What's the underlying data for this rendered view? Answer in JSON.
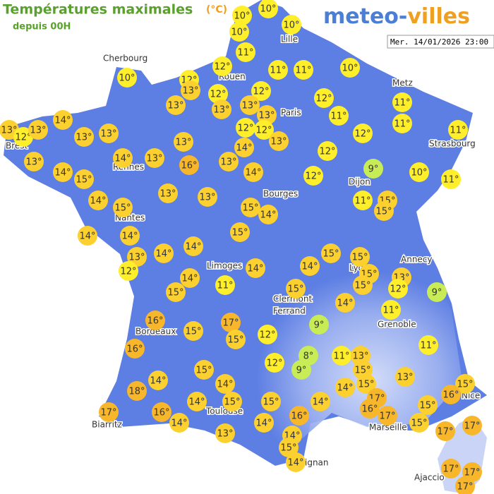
{
  "header": {
    "title": "Températures maximales",
    "unit": "(°C)",
    "subtitle": "depuis 00H",
    "logo_left": "meteo-",
    "logo_right": "villes",
    "timestamp": "Mer. 14/01/2026 23:00"
  },
  "cities": [
    "Lille",
    "Cherbourg",
    "Rouen",
    "Metz",
    "Paris",
    "Strasbourg",
    "Brest",
    "Rennes",
    "Dijon",
    "Nantes",
    "Bourges",
    "Annecy",
    "Limoges",
    "Lyon",
    "Clermont",
    "Ferrand",
    "Grenoble",
    "Bordeaux",
    "Nice",
    "Toulouse",
    "Marseille",
    "Biarritz",
    "ignan",
    "Ajaccio"
  ],
  "markers": [
    "10°",
    "10°",
    "10°",
    "10°",
    "11°",
    "10°",
    "12°",
    "11°",
    "11°",
    "10°",
    "12°",
    "13°",
    "12°",
    "12°",
    "12°",
    "13°",
    "13°",
    "13°",
    "13°",
    "11°",
    "11°",
    "11°",
    "11°",
    "14°",
    "13°",
    "12°",
    "13°",
    "13°",
    "13°",
    "12°",
    "12°",
    "13°",
    "12°",
    "13°",
    "14°",
    "12°",
    "13°",
    "14°",
    "13°",
    "16°",
    "13°",
    "9°",
    "10°",
    "14°",
    "15°",
    "14°",
    "12°",
    "11°",
    "14°",
    "15°",
    "13°",
    "13°",
    "15°",
    "14°",
    "11°",
    "15°",
    "15°",
    "14°",
    "14°",
    "15°",
    "13°",
    "14°",
    "14°",
    "15°",
    "15°",
    "12°",
    "14°",
    "14°",
    "15°",
    "13°",
    "15°",
    "12°",
    "9°",
    "14°",
    "15°",
    "11°",
    "15°",
    "14°",
    "11°",
    "16°",
    "17°",
    "9°",
    "15°",
    "12°",
    "15°",
    "16°",
    "11°",
    "8°",
    "11°",
    "13°",
    "12°",
    "9°",
    "15°",
    "15°",
    "13°",
    "14°",
    "14°",
    "15°",
    "14°",
    "15°",
    "16°",
    "18°",
    "14°",
    "15°",
    "15°",
    "14°",
    "17°",
    "16°",
    "15°",
    "17°",
    "16°",
    "16°",
    "17°",
    "14°",
    "14°",
    "15°",
    "17°",
    "17°",
    "13°",
    "14°",
    "15°",
    "14°",
    "17°",
    "17°",
    "17°"
  ]
}
